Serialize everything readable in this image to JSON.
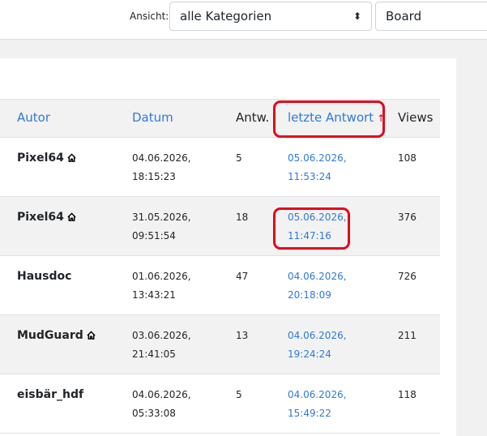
{
  "toolbar": {
    "label": "Ansicht:",
    "category": "alle Kategorien",
    "board": "Board"
  },
  "table": {
    "headers": [
      "Autor",
      "Datum",
      "Antw.",
      "letzte Antwort",
      "Views"
    ],
    "sort_indicator": "↑",
    "rows": [
      {
        "author": "Pixel64",
        "home": true,
        "date": [
          "04.06.2026,",
          "18:15:23"
        ],
        "replies": "5",
        "last": [
          "05.06.2026,",
          "11:53:24"
        ],
        "views": "108"
      },
      {
        "author": "Pixel64",
        "home": true,
        "date": [
          "31.05.2026,",
          "09:51:54"
        ],
        "replies": "18",
        "last": [
          "05.06.2026,",
          "11:47:16"
        ],
        "views": "376",
        "highlight": true
      },
      {
        "author": "Hausdoc",
        "home": false,
        "date": [
          "01.06.2026,",
          "13:43:21"
        ],
        "replies": "47",
        "last": [
          "04.06.2026,",
          "20:18:09"
        ],
        "views": "726"
      },
      {
        "author": "MudGuard",
        "home": true,
        "date": [
          "03.06.2026,",
          "21:41:05"
        ],
        "replies": "13",
        "last": [
          "04.06.2026,",
          "19:24:24"
        ],
        "views": "211"
      },
      {
        "author": "eisbär_hdf",
        "home": false,
        "date": [
          "04.06.2026,",
          "05:33:08"
        ],
        "replies": "5",
        "last": [
          "04.06.2026,",
          "15:49:22"
        ],
        "views": "118"
      }
    ]
  }
}
